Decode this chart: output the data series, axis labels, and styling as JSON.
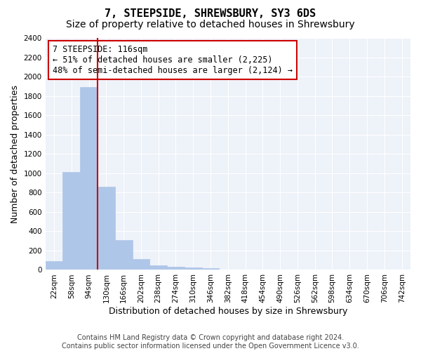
{
  "title": "7, STEEPSIDE, SHREWSBURY, SY3 6DS",
  "subtitle": "Size of property relative to detached houses in Shrewsbury",
  "xlabel": "Distribution of detached houses by size in Shrewsbury",
  "ylabel": "Number of detached properties",
  "bar_color": "#aec6e8",
  "bar_edgecolor": "#aec6e8",
  "vline_color": "#cc0000",
  "annotation_text": "7 STEEPSIDE: 116sqm\n← 51% of detached houses are smaller (2,225)\n48% of semi-detached houses are larger (2,124) →",
  "annotation_box_edgecolor": "#cc0000",
  "bin_labels": [
    "22sqm",
    "58sqm",
    "94sqm",
    "130sqm",
    "166sqm",
    "202sqm",
    "238sqm",
    "274sqm",
    "310sqm",
    "346sqm",
    "382sqm",
    "418sqm",
    "454sqm",
    "490sqm",
    "526sqm",
    "562sqm",
    "598sqm",
    "634sqm",
    "670sqm",
    "706sqm",
    "742sqm"
  ],
  "bar_values": [
    90,
    1010,
    1890,
    860,
    310,
    110,
    45,
    35,
    25,
    15,
    5,
    2,
    1,
    0,
    0,
    0,
    0,
    0,
    0,
    0,
    0
  ],
  "ylim": [
    0,
    2400
  ],
  "yticks": [
    0,
    200,
    400,
    600,
    800,
    1000,
    1200,
    1400,
    1600,
    1800,
    2000,
    2200,
    2400
  ],
  "background_color": "#eef2f9",
  "footer_text": "Contains HM Land Registry data © Crown copyright and database right 2024.\nContains public sector information licensed under the Open Government Licence v3.0.",
  "title_fontsize": 11,
  "subtitle_fontsize": 10,
  "xlabel_fontsize": 9,
  "ylabel_fontsize": 9,
  "tick_fontsize": 7.5,
  "annotation_fontsize": 8.5,
  "footer_fontsize": 7,
  "vline_pos": 3.0
}
